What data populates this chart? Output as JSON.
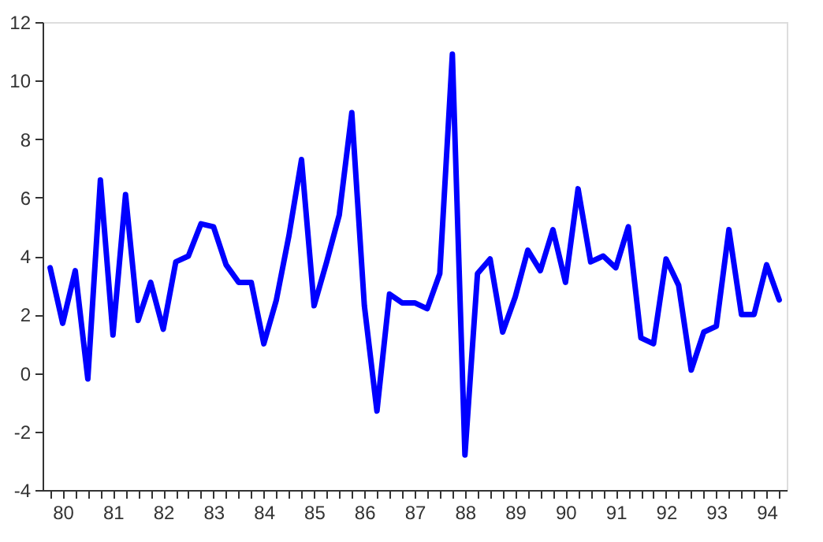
{
  "chart_data": {
    "type": "line",
    "categories": [
      null,
      "80",
      null,
      null,
      null,
      "81",
      null,
      null,
      null,
      "82",
      null,
      null,
      null,
      "83",
      null,
      null,
      null,
      "84",
      null,
      null,
      null,
      "85",
      null,
      null,
      null,
      "86",
      null,
      null,
      null,
      "87",
      null,
      null,
      null,
      "88",
      null,
      null,
      null,
      "89",
      null,
      null,
      null,
      "90",
      null,
      null,
      null,
      "91",
      null,
      null,
      null,
      "92",
      null,
      null,
      null,
      "93",
      null,
      null,
      null,
      "94",
      null
    ],
    "series": [
      {
        "color": "#0000ff",
        "values": [
          3.6,
          1.7,
          3.5,
          -0.2,
          6.6,
          1.3,
          6.1,
          1.8,
          3.1,
          1.5,
          3.8,
          4.0,
          5.1,
          5.0,
          3.7,
          3.1,
          3.1,
          1.0,
          2.5,
          4.7,
          7.3,
          2.3,
          3.8,
          5.4,
          8.9,
          2.3,
          -1.3,
          2.7,
          2.4,
          2.4,
          2.2,
          3.4,
          10.9,
          -2.8,
          3.4,
          3.9,
          1.4,
          2.6,
          4.2,
          3.5,
          4.9,
          3.1,
          6.3,
          3.8,
          4.0,
          3.6,
          5.0,
          1.2,
          1.0,
          3.9,
          3.0,
          0.1,
          1.4,
          1.6,
          4.9,
          2.0,
          2.0,
          3.7,
          2.5
        ]
      }
    ],
    "ylim": [
      -4,
      12
    ],
    "yticks": [
      -4,
      -2,
      0,
      2,
      4,
      6,
      8,
      10,
      12
    ],
    "grid": false,
    "marker": "none",
    "line_style": "solid"
  }
}
